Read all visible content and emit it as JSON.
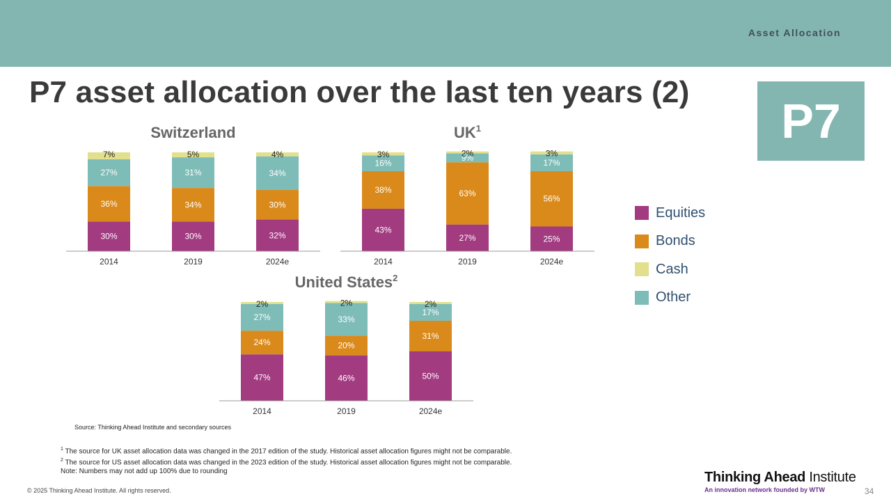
{
  "header": {
    "section_label": "Asset Allocation",
    "title": "P7 asset allocation over the last ten years (2)",
    "badge": "P7"
  },
  "colors": {
    "Equities": "#a23b80",
    "Bonds": "#da8a1b",
    "Cash": "#e2e08c",
    "Other": "#7ebcb8",
    "header_band": "#84b6b1"
  },
  "legend": [
    {
      "name": "Equities"
    },
    {
      "name": "Bonds"
    },
    {
      "name": "Cash"
    },
    {
      "name": "Other"
    }
  ],
  "chart_data": [
    {
      "type": "bar",
      "stacked": true,
      "title": "Switzerland",
      "title_sup": "",
      "categories": [
        "2014",
        "2019",
        "2024e"
      ],
      "series": [
        {
          "name": "Equities",
          "values": [
            30,
            30,
            32
          ]
        },
        {
          "name": "Bonds",
          "values": [
            36,
            34,
            30
          ]
        },
        {
          "name": "Other",
          "values": [
            27,
            31,
            34
          ]
        },
        {
          "name": "Cash",
          "values": [
            7,
            5,
            4
          ]
        }
      ],
      "ylim": [
        0,
        100
      ],
      "grid": false
    },
    {
      "type": "bar",
      "stacked": true,
      "title": "UK",
      "title_sup": "1",
      "categories": [
        "2014",
        "2019",
        "2024e"
      ],
      "series": [
        {
          "name": "Equities",
          "values": [
            43,
            27,
            25
          ]
        },
        {
          "name": "Bonds",
          "values": [
            38,
            63,
            56
          ]
        },
        {
          "name": "Other",
          "values": [
            16,
            9,
            17
          ]
        },
        {
          "name": "Cash",
          "values": [
            3,
            2,
            3
          ]
        }
      ],
      "ylim": [
        0,
        100
      ],
      "grid": false
    },
    {
      "type": "bar",
      "stacked": true,
      "title": "United States",
      "title_sup": "2",
      "categories": [
        "2014",
        "2019",
        "2024e"
      ],
      "series": [
        {
          "name": "Equities",
          "values": [
            47,
            46,
            50
          ]
        },
        {
          "name": "Bonds",
          "values": [
            24,
            20,
            31
          ]
        },
        {
          "name": "Other",
          "values": [
            27,
            33,
            17
          ]
        },
        {
          "name": "Cash",
          "values": [
            2,
            2,
            2
          ]
        }
      ],
      "ylim": [
        0,
        100
      ],
      "grid": false
    }
  ],
  "notes": {
    "source": "Source: Thinking Ahead Institute and secondary sources",
    "footnote1_mark": "1",
    "footnote1": " The source for UK asset allocation data was changed in the 2017 edition of the study. Historical asset allocation figures might not be comparable.",
    "footnote2_mark": "2",
    "footnote2": " The source for US asset allocation data was changed in the 2023 edition of the study. Historical asset allocation figures might not be comparable.",
    "note": "Note: Numbers may not add up 100% due to rounding"
  },
  "footer": {
    "copyright": "© 2025 Thinking Ahead Institute. All rights reserved.",
    "logo_bold": "Thinking Ahead",
    "logo_regular": " Institute",
    "tagline": "An innovation network founded by WTW",
    "page_number": "34"
  }
}
